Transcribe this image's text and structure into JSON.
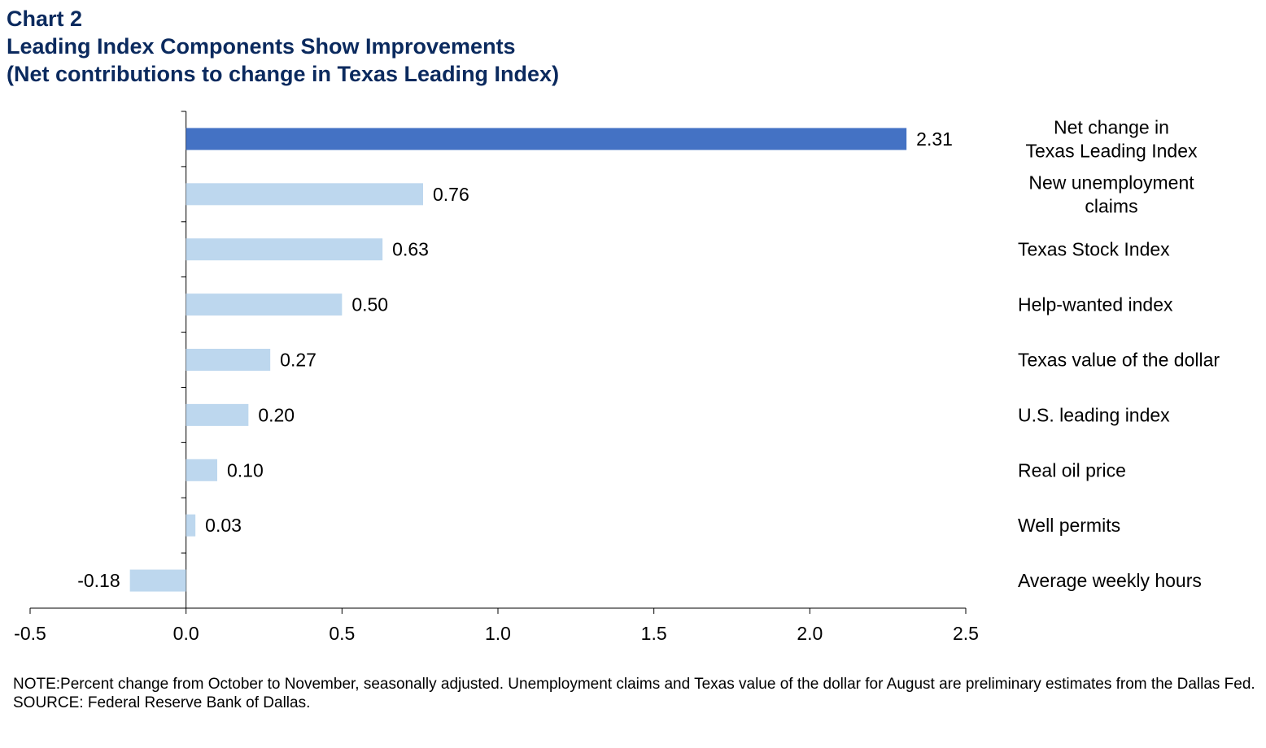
{
  "header": {
    "chart_label": "Chart 2",
    "title": "Leading Index Components Show Improvements",
    "subtitle": "(Net contributions to change in Texas Leading Index)"
  },
  "footer": {
    "note": "NOTE:Percent change from October to November, seasonally adjusted. Unemployment  claims and Texas value of the dollar for August are preliminary estimates from the Dallas Fed.",
    "source": "SOURCE: Federal Reserve Bank of Dallas."
  },
  "chart_data": {
    "type": "bar",
    "orientation": "horizontal",
    "title": "Leading Index Components Show Improvements",
    "subtitle": "(Net contributions to change in Texas Leading Index)",
    "categories": [
      [
        "Net change in",
        "Texas Leading Index"
      ],
      [
        "New unemployment",
        "claims"
      ],
      [
        "Texas Stock Index"
      ],
      [
        "Help-wanted index"
      ],
      [
        "Texas value of the dollar"
      ],
      [
        "U.S. leading index"
      ],
      [
        "Real oil price"
      ],
      [
        "Well permits"
      ],
      [
        "Average weekly hours"
      ]
    ],
    "values": [
      2.31,
      0.76,
      0.63,
      0.5,
      0.27,
      0.2,
      0.1,
      0.03,
      -0.18
    ],
    "value_labels": [
      "2.31",
      "0.76",
      "0.63",
      "0.50",
      "0.27",
      "0.20",
      "0.10",
      "0.03",
      "-0.18"
    ],
    "highlight_index": 0,
    "colors": {
      "highlight": "#4472c4",
      "bar": "#bdd7ee",
      "axis": "#000000",
      "title": "#0b2a5e"
    },
    "xlim": [
      -0.5,
      2.5
    ],
    "xticks": [
      -0.5,
      0.0,
      0.5,
      1.0,
      1.5,
      2.0,
      2.5
    ],
    "xtick_labels": [
      "-0.5",
      "0.0",
      "0.5",
      "1.0",
      "1.5",
      "2.0",
      "2.5"
    ],
    "xlabel": "",
    "ylabel": "",
    "grid": false,
    "legend": "none"
  }
}
